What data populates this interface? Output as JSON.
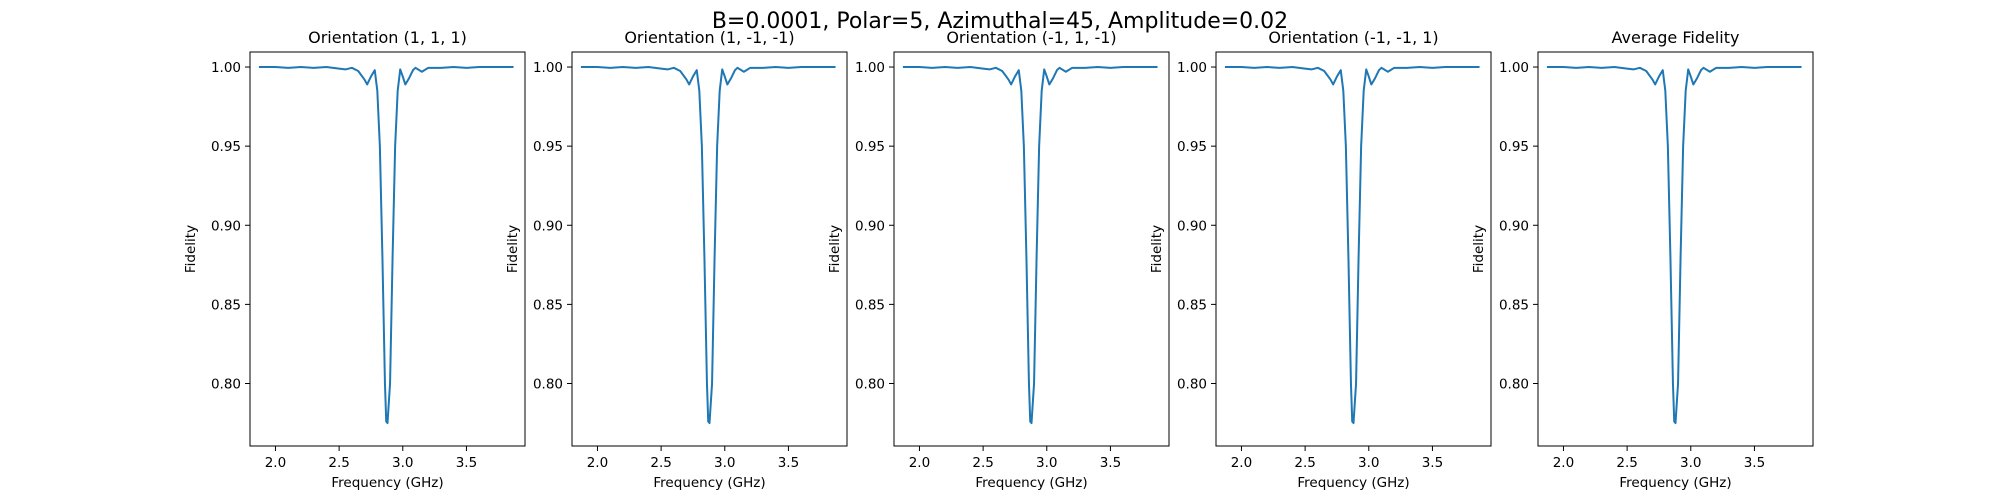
{
  "figure": {
    "suptitle": "B=0.0001, Polar=5, Azimuthal=45, Amplitude=0.02",
    "line_color": "#1f77b4"
  },
  "chart_data": [
    {
      "type": "line",
      "title": "Orientation (1, 1, 1)",
      "xlabel": "Frequency (GHz)",
      "ylabel": "Fidelity",
      "xlim": [
        1.8,
        3.96
      ],
      "ylim": [
        0.7605,
        1.0095
      ],
      "xticks": [
        "2.0",
        "2.5",
        "3.0",
        "3.5"
      ],
      "yticks": [
        "0.80",
        "0.85",
        "0.90",
        "0.95",
        "1.00"
      ],
      "series": [
        {
          "x": [
            1.87,
            2.0,
            2.1,
            2.2,
            2.3,
            2.4,
            2.5,
            2.55,
            2.6,
            2.65,
            2.7,
            2.72,
            2.75,
            2.78,
            2.8,
            2.82,
            2.84,
            2.86,
            2.87,
            2.88,
            2.9,
            2.92,
            2.94,
            2.96,
            2.98,
            3.0,
            3.02,
            3.05,
            3.08,
            3.1,
            3.15,
            3.2,
            3.3,
            3.4,
            3.5,
            3.6,
            3.7,
            3.8,
            3.87
          ],
          "y": [
            1.0,
            1.0,
            0.9995,
            1.0,
            0.9995,
            1.0,
            0.999,
            0.9985,
            0.9995,
            0.9975,
            0.992,
            0.989,
            0.994,
            0.998,
            0.985,
            0.95,
            0.88,
            0.8,
            0.776,
            0.775,
            0.8,
            0.88,
            0.95,
            0.985,
            0.9985,
            0.994,
            0.989,
            0.993,
            0.998,
            0.9995,
            0.997,
            0.9995,
            0.9995,
            1.0,
            0.9995,
            1.0,
            1.0,
            1.0,
            1.0
          ]
        }
      ]
    },
    {
      "type": "line",
      "title": "Orientation (1, -1, -1)",
      "xlabel": "Frequency (GHz)",
      "ylabel": "Fidelity",
      "xlim": [
        1.8,
        3.96
      ],
      "ylim": [
        0.7605,
        1.0095
      ],
      "xticks": [
        "2.0",
        "2.5",
        "3.0",
        "3.5"
      ],
      "yticks": [
        "0.80",
        "0.85",
        "0.90",
        "0.95",
        "1.00"
      ],
      "series": [
        {
          "x": [
            1.87,
            2.0,
            2.1,
            2.2,
            2.3,
            2.4,
            2.5,
            2.55,
            2.6,
            2.65,
            2.7,
            2.72,
            2.75,
            2.78,
            2.8,
            2.82,
            2.84,
            2.86,
            2.87,
            2.88,
            2.9,
            2.92,
            2.94,
            2.96,
            2.98,
            3.0,
            3.02,
            3.05,
            3.08,
            3.1,
            3.15,
            3.2,
            3.3,
            3.4,
            3.5,
            3.6,
            3.7,
            3.8,
            3.87
          ],
          "y": [
            1.0,
            1.0,
            0.9995,
            1.0,
            0.9995,
            1.0,
            0.999,
            0.9985,
            0.9995,
            0.9975,
            0.992,
            0.989,
            0.994,
            0.998,
            0.985,
            0.95,
            0.88,
            0.8,
            0.776,
            0.775,
            0.8,
            0.88,
            0.95,
            0.985,
            0.9985,
            0.994,
            0.989,
            0.993,
            0.998,
            0.9995,
            0.997,
            0.9995,
            0.9995,
            1.0,
            0.9995,
            1.0,
            1.0,
            1.0,
            1.0
          ]
        }
      ]
    },
    {
      "type": "line",
      "title": "Orientation (-1, 1, -1)",
      "xlabel": "Frequency (GHz)",
      "ylabel": "Fidelity",
      "xlim": [
        1.8,
        3.96
      ],
      "ylim": [
        0.7605,
        1.0095
      ],
      "xticks": [
        "2.0",
        "2.5",
        "3.0",
        "3.5"
      ],
      "yticks": [
        "0.80",
        "0.85",
        "0.90",
        "0.95",
        "1.00"
      ],
      "series": [
        {
          "x": [
            1.87,
            2.0,
            2.1,
            2.2,
            2.3,
            2.4,
            2.5,
            2.55,
            2.6,
            2.65,
            2.7,
            2.72,
            2.75,
            2.78,
            2.8,
            2.82,
            2.84,
            2.86,
            2.87,
            2.88,
            2.9,
            2.92,
            2.94,
            2.96,
            2.98,
            3.0,
            3.02,
            3.05,
            3.08,
            3.1,
            3.15,
            3.2,
            3.3,
            3.4,
            3.5,
            3.6,
            3.7,
            3.8,
            3.87
          ],
          "y": [
            1.0,
            1.0,
            0.9995,
            1.0,
            0.9995,
            1.0,
            0.999,
            0.9985,
            0.9995,
            0.9975,
            0.992,
            0.989,
            0.994,
            0.998,
            0.985,
            0.95,
            0.88,
            0.8,
            0.776,
            0.775,
            0.8,
            0.88,
            0.95,
            0.985,
            0.9985,
            0.994,
            0.989,
            0.993,
            0.998,
            0.9995,
            0.997,
            0.9995,
            0.9995,
            1.0,
            0.9995,
            1.0,
            1.0,
            1.0,
            1.0
          ]
        }
      ]
    },
    {
      "type": "line",
      "title": "Orientation (-1, -1, 1)",
      "xlabel": "Frequency (GHz)",
      "ylabel": "Fidelity",
      "xlim": [
        1.8,
        3.96
      ],
      "ylim": [
        0.7605,
        1.0095
      ],
      "xticks": [
        "2.0",
        "2.5",
        "3.0",
        "3.5"
      ],
      "yticks": [
        "0.80",
        "0.85",
        "0.90",
        "0.95",
        "1.00"
      ],
      "series": [
        {
          "x": [
            1.87,
            2.0,
            2.1,
            2.2,
            2.3,
            2.4,
            2.5,
            2.55,
            2.6,
            2.65,
            2.7,
            2.72,
            2.75,
            2.78,
            2.8,
            2.82,
            2.84,
            2.86,
            2.87,
            2.88,
            2.9,
            2.92,
            2.94,
            2.96,
            2.98,
            3.0,
            3.02,
            3.05,
            3.08,
            3.1,
            3.15,
            3.2,
            3.3,
            3.4,
            3.5,
            3.6,
            3.7,
            3.8,
            3.87
          ],
          "y": [
            1.0,
            1.0,
            0.9995,
            1.0,
            0.9995,
            1.0,
            0.999,
            0.9985,
            0.9995,
            0.9975,
            0.992,
            0.989,
            0.994,
            0.998,
            0.985,
            0.95,
            0.88,
            0.8,
            0.776,
            0.775,
            0.8,
            0.88,
            0.95,
            0.985,
            0.9985,
            0.994,
            0.989,
            0.993,
            0.998,
            0.9995,
            0.997,
            0.9995,
            0.9995,
            1.0,
            0.9995,
            1.0,
            1.0,
            1.0,
            1.0
          ]
        }
      ]
    },
    {
      "type": "line",
      "title": "Average Fidelity",
      "xlabel": "Frequency (GHz)",
      "ylabel": "Fidelity",
      "xlim": [
        1.8,
        3.96
      ],
      "ylim": [
        0.7605,
        1.0095
      ],
      "xticks": [
        "2.0",
        "2.5",
        "3.0",
        "3.5"
      ],
      "yticks": [
        "0.80",
        "0.85",
        "0.90",
        "0.95",
        "1.00"
      ],
      "series": [
        {
          "x": [
            1.87,
            2.0,
            2.1,
            2.2,
            2.3,
            2.4,
            2.5,
            2.55,
            2.6,
            2.65,
            2.7,
            2.72,
            2.75,
            2.78,
            2.8,
            2.82,
            2.84,
            2.86,
            2.87,
            2.88,
            2.9,
            2.92,
            2.94,
            2.96,
            2.98,
            3.0,
            3.02,
            3.05,
            3.08,
            3.1,
            3.15,
            3.2,
            3.3,
            3.4,
            3.5,
            3.6,
            3.7,
            3.8,
            3.87
          ],
          "y": [
            1.0,
            1.0,
            0.9995,
            1.0,
            0.9995,
            1.0,
            0.999,
            0.9985,
            0.9995,
            0.9975,
            0.992,
            0.989,
            0.994,
            0.998,
            0.985,
            0.95,
            0.88,
            0.8,
            0.776,
            0.775,
            0.8,
            0.88,
            0.95,
            0.985,
            0.9985,
            0.994,
            0.989,
            0.993,
            0.998,
            0.9995,
            0.997,
            0.9995,
            0.9995,
            1.0,
            0.9995,
            1.0,
            1.0,
            1.0,
            1.0
          ]
        }
      ]
    }
  ]
}
